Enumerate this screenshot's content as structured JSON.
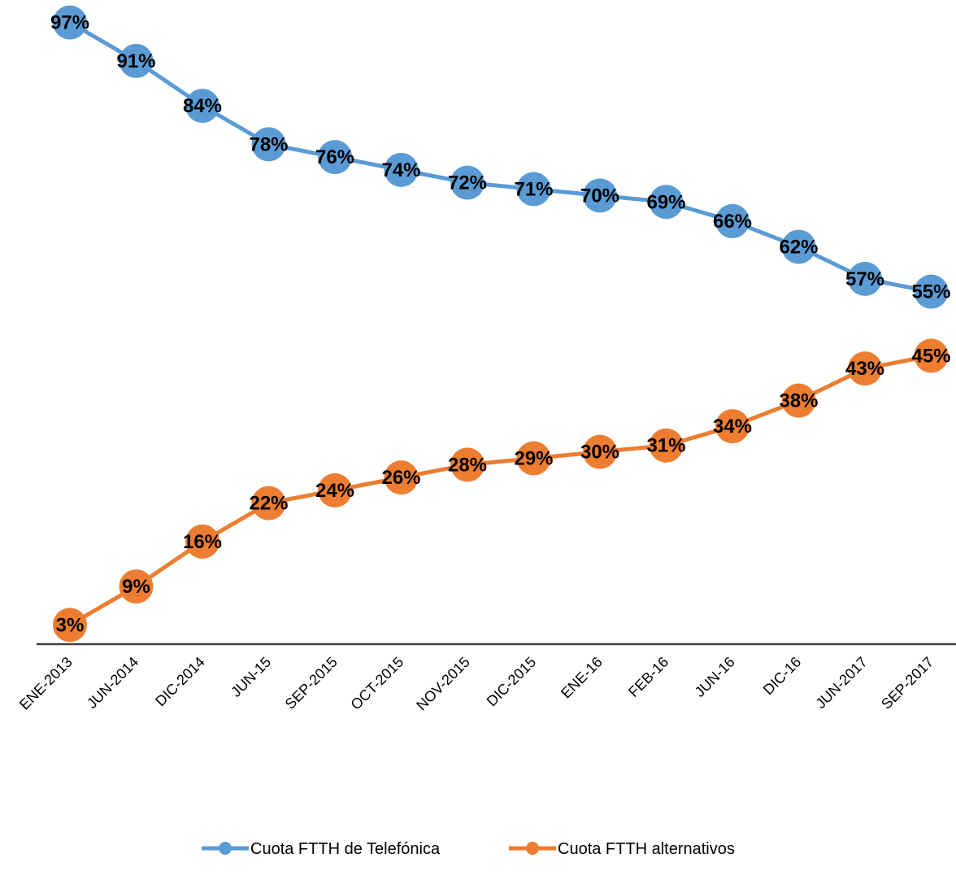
{
  "chart_data": {
    "type": "line",
    "categories": [
      "ENE-2013",
      "JUN-2014",
      "DIC-2014",
      "JUN-15",
      "SEP-2015",
      "OCT-2015",
      "NOV-2015",
      "DIC-2015",
      "ENE-16",
      "FEB-16",
      "JUN-16",
      "DIC-16",
      "JUN-2017",
      "SEP-2017"
    ],
    "series": [
      {
        "name": "Cuota FTTH de Telefónica",
        "color": "#5B9BD5",
        "values": [
          97,
          91,
          84,
          78,
          76,
          74,
          72,
          71,
          70,
          69,
          66,
          62,
          57,
          55
        ],
        "labels": [
          "97%",
          "91%",
          "84%",
          "78%",
          "76%",
          "74%",
          "72%",
          "71%",
          "70%",
          "69%",
          "66%",
          "62%",
          "57%",
          "55%"
        ]
      },
      {
        "name": "Cuota FTTH alternativos",
        "color": "#ED7D31",
        "values": [
          3,
          9,
          16,
          22,
          24,
          26,
          28,
          29,
          30,
          31,
          34,
          38,
          43,
          45
        ],
        "labels": [
          "3%",
          "9%",
          "16%",
          "22%",
          "24%",
          "26%",
          "28%",
          "29%",
          "30%",
          "31%",
          "34%",
          "38%",
          "43%",
          "45%"
        ]
      }
    ],
    "ylim": [
      0,
      100
    ],
    "grid": false,
    "legend_position": "bottom"
  }
}
